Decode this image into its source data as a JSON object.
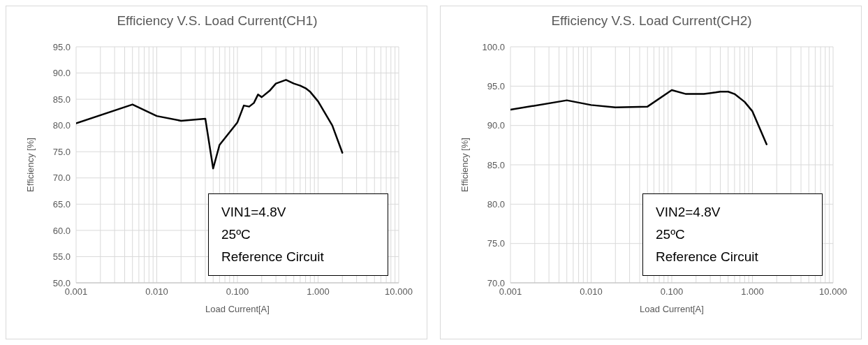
{
  "chart_data": [
    {
      "type": "line",
      "title": "Efficiency V.S. Load Current(CH1)",
      "xlabel": "Load Current[A]",
      "ylabel": "Efficiency [%]",
      "annotations": [
        "VIN1=4.8V",
        "25ºC",
        "Reference Circuit"
      ],
      "x": [
        0.001,
        0.005,
        0.01,
        0.02,
        0.04,
        0.05,
        0.06,
        0.1,
        0.12,
        0.14,
        0.16,
        0.18,
        0.2,
        0.25,
        0.3,
        0.4,
        0.5,
        0.6,
        0.7,
        0.8,
        1.0,
        1.5,
        2.0
      ],
      "series": [
        {
          "color": "#000000",
          "values": [
            80.4,
            84.0,
            81.8,
            80.9,
            81.3,
            71.8,
            76.3,
            80.6,
            83.8,
            83.6,
            84.3,
            85.9,
            85.4,
            86.6,
            88.0,
            88.7,
            88.0,
            87.6,
            87.1,
            86.4,
            84.6,
            80.0,
            74.8
          ]
        }
      ],
      "log": "x",
      "xlim": [
        0.001,
        10
      ],
      "xticks": [
        {
          "value": 0.001,
          "label": "0.001"
        },
        {
          "value": 0.002,
          "label": null
        },
        {
          "value": 0.003,
          "label": null
        },
        {
          "value": 0.004,
          "label": null
        },
        {
          "value": 0.005,
          "label": null
        },
        {
          "value": 0.006,
          "label": null
        },
        {
          "value": 0.007,
          "label": null
        },
        {
          "value": 0.008,
          "label": null
        },
        {
          "value": 0.009,
          "label": null
        },
        {
          "value": 0.01,
          "label": "0.010"
        },
        {
          "value": 0.02,
          "label": null
        },
        {
          "value": 0.03,
          "label": null
        },
        {
          "value": 0.04,
          "label": null
        },
        {
          "value": 0.05,
          "label": null
        },
        {
          "value": 0.06,
          "label": null
        },
        {
          "value": 0.07,
          "label": null
        },
        {
          "value": 0.08,
          "label": null
        },
        {
          "value": 0.09,
          "label": null
        },
        {
          "value": 0.1,
          "label": "0.100"
        },
        {
          "value": 0.2,
          "label": null
        },
        {
          "value": 0.3,
          "label": null
        },
        {
          "value": 0.4,
          "label": null
        },
        {
          "value": 0.5,
          "label": null
        },
        {
          "value": 0.6,
          "label": null
        },
        {
          "value": 0.7,
          "label": null
        },
        {
          "value": 0.8,
          "label": null
        },
        {
          "value": 0.9,
          "label": null
        },
        {
          "value": 1,
          "label": "1.000"
        },
        {
          "value": 2,
          "label": null
        },
        {
          "value": 3,
          "label": null
        },
        {
          "value": 4,
          "label": null
        },
        {
          "value": 5,
          "label": null
        },
        {
          "value": 6,
          "label": null
        },
        {
          "value": 7,
          "label": null
        },
        {
          "value": 8,
          "label": null
        },
        {
          "value": 9,
          "label": null
        },
        {
          "value": 10,
          "label": "10.000"
        }
      ],
      "ylim": [
        50,
        95
      ],
      "yticks": [
        {
          "value": 50,
          "label": "50.0"
        },
        {
          "value": 55,
          "label": "55.0"
        },
        {
          "value": 60,
          "label": "60.0"
        },
        {
          "value": 65,
          "label": "65.0"
        },
        {
          "value": 70,
          "label": "70.0"
        },
        {
          "value": 75,
          "label": "75.0"
        },
        {
          "value": 80,
          "label": "80.0"
        },
        {
          "value": 85,
          "label": "85.0"
        },
        {
          "value": 90,
          "label": "90.0"
        },
        {
          "value": 95,
          "label": "95.0"
        }
      ],
      "grid": true,
      "marker": "none",
      "line_style": "solid",
      "legend": false
    },
    {
      "type": "line",
      "title": "Efficiency V.S. Load Current(CH2)",
      "xlabel": "Load Current[A]",
      "ylabel": "Efficiency [%]",
      "annotations": [
        "VIN2=4.8V",
        "25ºC",
        "Reference Circuit"
      ],
      "x": [
        0.001,
        0.005,
        0.01,
        0.02,
        0.05,
        0.1,
        0.15,
        0.25,
        0.35,
        0.4,
        0.5,
        0.6,
        0.8,
        1.0,
        1.5
      ],
      "series": [
        {
          "color": "#000000",
          "values": [
            92.0,
            93.2,
            92.6,
            92.3,
            92.4,
            94.5,
            94.0,
            94.0,
            94.2,
            94.3,
            94.3,
            94.0,
            93.0,
            91.8,
            87.6
          ]
        }
      ],
      "log": "x",
      "xlim": [
        0.001,
        10
      ],
      "xticks": [
        {
          "value": 0.001,
          "label": "0.001"
        },
        {
          "value": 0.002,
          "label": null
        },
        {
          "value": 0.003,
          "label": null
        },
        {
          "value": 0.004,
          "label": null
        },
        {
          "value": 0.005,
          "label": null
        },
        {
          "value": 0.006,
          "label": null
        },
        {
          "value": 0.007,
          "label": null
        },
        {
          "value": 0.008,
          "label": null
        },
        {
          "value": 0.009,
          "label": null
        },
        {
          "value": 0.01,
          "label": "0.010"
        },
        {
          "value": 0.02,
          "label": null
        },
        {
          "value": 0.03,
          "label": null
        },
        {
          "value": 0.04,
          "label": null
        },
        {
          "value": 0.05,
          "label": null
        },
        {
          "value": 0.06,
          "label": null
        },
        {
          "value": 0.07,
          "label": null
        },
        {
          "value": 0.08,
          "label": null
        },
        {
          "value": 0.09,
          "label": null
        },
        {
          "value": 0.1,
          "label": "0.100"
        },
        {
          "value": 0.2,
          "label": null
        },
        {
          "value": 0.3,
          "label": null
        },
        {
          "value": 0.4,
          "label": null
        },
        {
          "value": 0.5,
          "label": null
        },
        {
          "value": 0.6,
          "label": null
        },
        {
          "value": 0.7,
          "label": null
        },
        {
          "value": 0.8,
          "label": null
        },
        {
          "value": 0.9,
          "label": null
        },
        {
          "value": 1,
          "label": "1.000"
        },
        {
          "value": 2,
          "label": null
        },
        {
          "value": 3,
          "label": null
        },
        {
          "value": 4,
          "label": null
        },
        {
          "value": 5,
          "label": null
        },
        {
          "value": 6,
          "label": null
        },
        {
          "value": 7,
          "label": null
        },
        {
          "value": 8,
          "label": null
        },
        {
          "value": 9,
          "label": null
        },
        {
          "value": 10,
          "label": "10.000"
        }
      ],
      "ylim": [
        70,
        100
      ],
      "yticks": [
        {
          "value": 70,
          "label": "70.0"
        },
        {
          "value": 75,
          "label": "75.0"
        },
        {
          "value": 80,
          "label": "80.0"
        },
        {
          "value": 85,
          "label": "85.0"
        },
        {
          "value": 90,
          "label": "90.0"
        },
        {
          "value": 95,
          "label": "95.0"
        },
        {
          "value": 100,
          "label": "100.0"
        }
      ],
      "grid": true,
      "marker": "none",
      "line_style": "solid",
      "legend": false
    }
  ]
}
